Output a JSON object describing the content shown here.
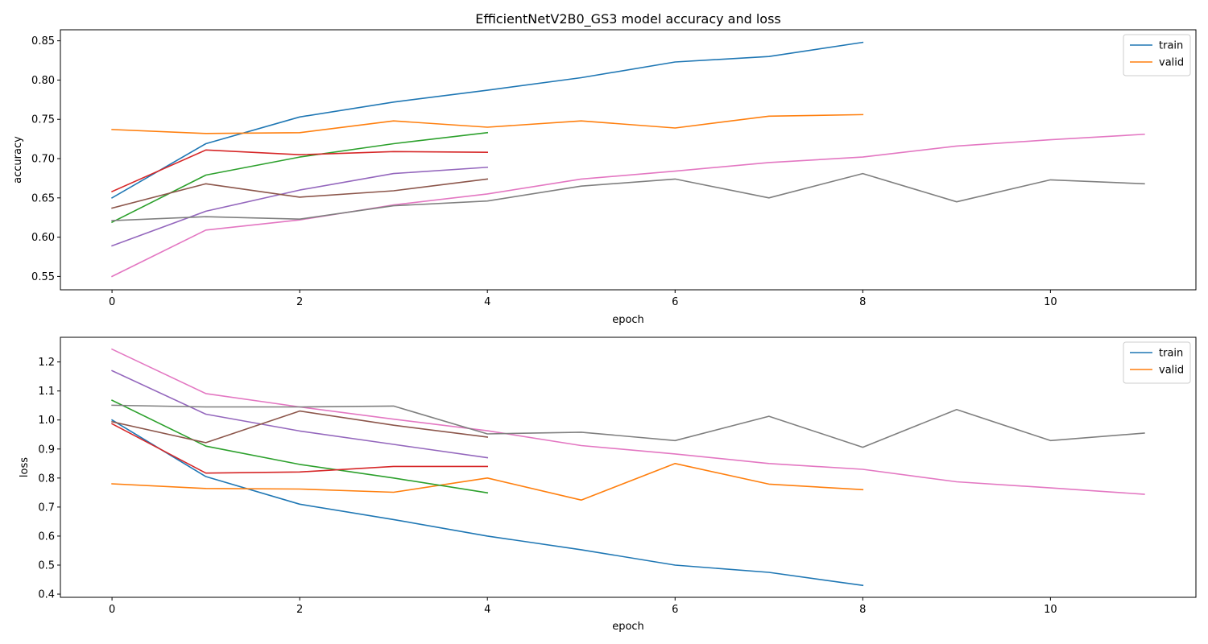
{
  "figure_title": "EfficientNetV2B0_GS3 model accuracy and loss",
  "chart_data": [
    {
      "type": "line",
      "xlabel": "epoch",
      "ylabel": "accuracy",
      "xlim": [
        -0.55,
        11.55
      ],
      "ylim": [
        0.533,
        0.864
      ],
      "xticks": [
        0,
        2,
        4,
        6,
        8,
        10
      ],
      "xtick_labels": [
        "0",
        "2",
        "4",
        "6",
        "8",
        "10"
      ],
      "yticks": [
        0.55,
        0.6,
        0.65,
        0.7,
        0.75,
        0.8,
        0.85
      ],
      "ytick_labels": [
        "0.55",
        "0.60",
        "0.65",
        "0.70",
        "0.75",
        "0.80",
        "0.85"
      ],
      "grid": false,
      "legend": {
        "position": "top-right",
        "entries": [
          {
            "label": "train",
            "color": "#1f77b4"
          },
          {
            "label": "valid",
            "color": "#ff7f0e"
          }
        ]
      },
      "series": [
        {
          "name": "train",
          "color": "#1f77b4",
          "x": [
            0,
            1,
            2,
            3,
            4,
            5,
            6,
            7,
            8
          ],
          "y": [
            0.65,
            0.719,
            0.753,
            0.772,
            0.787,
            0.803,
            0.823,
            0.83,
            0.848
          ]
        },
        {
          "name": "valid",
          "color": "#ff7f0e",
          "x": [
            0,
            1,
            2,
            3,
            4,
            5,
            6,
            7,
            8
          ],
          "y": [
            0.737,
            0.732,
            0.733,
            0.748,
            0.74,
            0.748,
            0.739,
            0.754,
            0.756
          ]
        },
        {
          "color": "#2ca02c",
          "x": [
            0,
            1,
            2,
            3,
            4
          ],
          "y": [
            0.619,
            0.679,
            0.702,
            0.719,
            0.733
          ]
        },
        {
          "color": "#d62728",
          "x": [
            0,
            1,
            2,
            3,
            4
          ],
          "y": [
            0.658,
            0.711,
            0.705,
            0.709,
            0.708
          ]
        },
        {
          "color": "#9467bd",
          "x": [
            0,
            1,
            2,
            3,
            4
          ],
          "y": [
            0.589,
            0.633,
            0.66,
            0.681,
            0.689
          ]
        },
        {
          "color": "#8c564b",
          "x": [
            0,
            1,
            2,
            3,
            4
          ],
          "y": [
            0.637,
            0.668,
            0.651,
            0.659,
            0.674
          ]
        },
        {
          "color": "#e377c2",
          "x": [
            0,
            1,
            2,
            3,
            4,
            5,
            6,
            7,
            8,
            9,
            10,
            11
          ],
          "y": [
            0.55,
            0.609,
            0.622,
            0.641,
            0.655,
            0.674,
            0.684,
            0.695,
            0.702,
            0.716,
            0.724,
            0.731
          ]
        },
        {
          "color": "#7f7f7f",
          "x": [
            0,
            1,
            2,
            3,
            4,
            5,
            6,
            7,
            8,
            9,
            10,
            11
          ],
          "y": [
            0.621,
            0.626,
            0.623,
            0.64,
            0.646,
            0.665,
            0.674,
            0.65,
            0.681,
            0.645,
            0.673,
            0.668
          ]
        }
      ]
    },
    {
      "type": "line",
      "xlabel": "epoch",
      "ylabel": "loss",
      "xlim": [
        -0.55,
        11.55
      ],
      "ylim": [
        0.389,
        1.285
      ],
      "xticks": [
        0,
        2,
        4,
        6,
        8,
        10
      ],
      "xtick_labels": [
        "0",
        "2",
        "4",
        "6",
        "8",
        "10"
      ],
      "yticks": [
        0.4,
        0.5,
        0.6,
        0.7,
        0.8,
        0.9,
        1.0,
        1.1,
        1.2
      ],
      "ytick_labels": [
        "0.4",
        "0.5",
        "0.6",
        "0.7",
        "0.8",
        "0.9",
        "1.0",
        "1.1",
        "1.2"
      ],
      "grid": false,
      "legend": {
        "position": "top-right",
        "entries": [
          {
            "label": "train",
            "color": "#1f77b4"
          },
          {
            "label": "valid",
            "color": "#ff7f0e"
          }
        ]
      },
      "series": [
        {
          "name": "train",
          "color": "#1f77b4",
          "x": [
            0,
            1,
            2,
            3,
            4,
            5,
            6,
            7,
            8
          ],
          "y": [
            1.0,
            0.805,
            0.71,
            0.657,
            0.6,
            0.553,
            0.5,
            0.475,
            0.43
          ]
        },
        {
          "name": "valid",
          "color": "#ff7f0e",
          "x": [
            0,
            1,
            2,
            3,
            4,
            5,
            6,
            7,
            8
          ],
          "y": [
            0.78,
            0.764,
            0.762,
            0.751,
            0.8,
            0.724,
            0.85,
            0.779,
            0.76
          ]
        },
        {
          "color": "#2ca02c",
          "x": [
            0,
            1,
            2,
            3,
            4
          ],
          "y": [
            1.068,
            0.91,
            0.847,
            0.8,
            0.749
          ]
        },
        {
          "color": "#d62728",
          "x": [
            0,
            1,
            2,
            3,
            4
          ],
          "y": [
            0.987,
            0.817,
            0.821,
            0.84,
            0.84
          ]
        },
        {
          "color": "#9467bd",
          "x": [
            0,
            1,
            2,
            3,
            4
          ],
          "y": [
            1.17,
            1.02,
            0.962,
            0.916,
            0.87
          ]
        },
        {
          "color": "#8c564b",
          "x": [
            0,
            1,
            2,
            3,
            4
          ],
          "y": [
            0.994,
            0.922,
            1.031,
            0.982,
            0.941
          ]
        },
        {
          "color": "#e377c2",
          "x": [
            0,
            1,
            2,
            3,
            4,
            5,
            6,
            7,
            8,
            9,
            10,
            11
          ],
          "y": [
            1.244,
            1.091,
            1.045,
            1.003,
            0.963,
            0.912,
            0.883,
            0.85,
            0.83,
            0.787,
            0.766,
            0.744
          ]
        },
        {
          "color": "#7f7f7f",
          "x": [
            0,
            1,
            2,
            3,
            4,
            5,
            6,
            7,
            8,
            9,
            10,
            11
          ],
          "y": [
            1.051,
            1.045,
            1.045,
            1.048,
            0.952,
            0.958,
            0.929,
            1.013,
            0.906,
            1.036,
            0.929,
            0.955
          ]
        }
      ]
    }
  ]
}
